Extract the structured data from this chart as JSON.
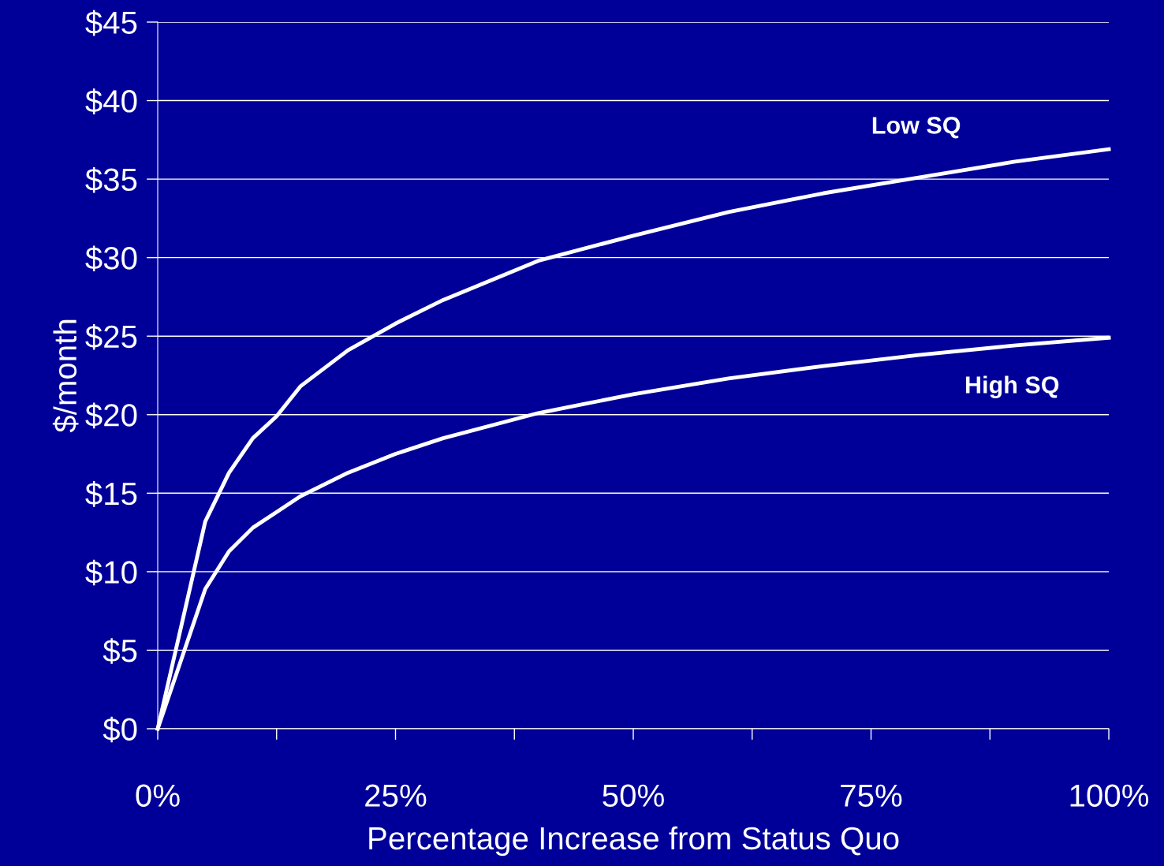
{
  "chart_data": {
    "type": "line",
    "xlabel": "Percentage Increase from Status Quo",
    "ylabel": "$/month",
    "xlim": [
      0,
      100
    ],
    "xticks": [
      {
        "value": 0,
        "label": "0%"
      },
      {
        "value": 12.5,
        "label": null
      },
      {
        "value": 25,
        "label": "25%"
      },
      {
        "value": 37.5,
        "label": null
      },
      {
        "value": 50,
        "label": "50%"
      },
      {
        "value": 62.5,
        "label": null
      },
      {
        "value": 75,
        "label": "75%"
      },
      {
        "value": 87.5,
        "label": null
      },
      {
        "value": 100,
        "label": "100%"
      }
    ],
    "ylim": [
      0,
      45
    ],
    "yticks": [
      {
        "value": 0,
        "label": "$0"
      },
      {
        "value": 5,
        "label": "$5"
      },
      {
        "value": 10,
        "label": "$10"
      },
      {
        "value": 15,
        "label": "$15"
      },
      {
        "value": 20,
        "label": "$20"
      },
      {
        "value": 25,
        "label": "$25"
      },
      {
        "value": 30,
        "label": "$30"
      },
      {
        "value": 35,
        "label": "$35"
      },
      {
        "value": 40,
        "label": "$40"
      },
      {
        "value": 45,
        "label": "$45"
      }
    ],
    "grid": "y",
    "marker": "none",
    "line_style": "solid",
    "x": [
      0,
      5,
      7.5,
      10,
      12.5,
      15,
      20,
      25,
      30,
      40,
      50,
      60,
      70,
      80,
      90,
      100
    ],
    "series": [
      {
        "name": "Low SQ",
        "color": "#ffffff",
        "values": [
          0,
          13.2,
          16.3,
          18.5,
          19.9,
          21.8,
          24.1,
          25.8,
          27.3,
          29.8,
          31.4,
          32.9,
          34.1,
          35.1,
          36.1,
          36.9
        ]
      },
      {
        "name": "High SQ",
        "color": "#ffffff",
        "values": [
          0,
          8.9,
          11.3,
          12.8,
          13.8,
          14.8,
          16.3,
          17.5,
          18.5,
          20.1,
          21.3,
          22.3,
          23.1,
          23.8,
          24.4,
          24.9
        ]
      }
    ]
  }
}
